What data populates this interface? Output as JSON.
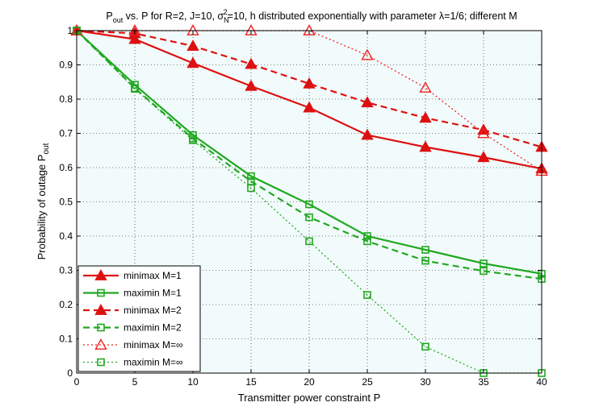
{
  "chart_data": {
    "type": "line",
    "title": {
      "p_main": "P",
      "p_sub": "out",
      "part1": " vs. P for R=2, J=10, σ",
      "sigma_sup": "2",
      "sigma_sub": "N",
      "part2": "=10, h distributed exponentially with parameter λ=1/6; different M"
    },
    "xlabel": "Transmitter power constraint P",
    "ylabel": {
      "main": "Probability of outage P",
      "sub": "out"
    },
    "xlim": [
      0,
      40
    ],
    "ylim": [
      0,
      1
    ],
    "xticks": [
      0,
      5,
      10,
      15,
      20,
      25,
      30,
      35,
      40
    ],
    "xtick_labels": [
      "0",
      "5",
      "10",
      "15",
      "20",
      "25",
      "30",
      "35",
      "40"
    ],
    "yticks": [
      0,
      0.1,
      0.2,
      0.3,
      0.4,
      0.5,
      0.6,
      0.7,
      0.8,
      0.9,
      1
    ],
    "ytick_labels": [
      "0",
      "0.1",
      "0.2",
      "0.3",
      "0.4",
      "0.5",
      "0.6",
      "0.7",
      "0.8",
      "0.9",
      "1"
    ],
    "grid": true,
    "legend_position": "bottom-left",
    "x": [
      0,
      5,
      10,
      15,
      20,
      25,
      30,
      35,
      40
    ],
    "series": [
      {
        "name": "minimax M=1",
        "color": "#dd1111",
        "line": "solid",
        "marker": "filled-triangle",
        "values": [
          1.0,
          0.975,
          0.905,
          0.838,
          0.775,
          0.695,
          0.66,
          0.63,
          0.597
        ]
      },
      {
        "name": "maximin M=1",
        "color": "#22a822",
        "line": "solid",
        "marker": "square",
        "values": [
          1.0,
          0.842,
          0.695,
          0.575,
          0.493,
          0.4,
          0.36,
          0.32,
          0.29
        ]
      },
      {
        "name": "minimax M=2",
        "color": "#dd1111",
        "line": "dashed",
        "marker": "filled-triangle",
        "values": [
          1.0,
          0.992,
          0.955,
          0.902,
          0.845,
          0.79,
          0.745,
          0.71,
          0.66
        ]
      },
      {
        "name": "maximin M=2",
        "color": "#22a822",
        "line": "dashed",
        "marker": "square",
        "values": [
          1.0,
          0.832,
          0.685,
          0.56,
          0.455,
          0.385,
          0.328,
          0.298,
          0.275
        ]
      },
      {
        "name": "minimax M=∞",
        "color": "#ee2222",
        "line": "dotted",
        "marker": "open-triangle",
        "values": [
          1.0,
          1.0,
          1.0,
          1.0,
          1.0,
          0.928,
          0.833,
          0.7,
          0.59
        ]
      },
      {
        "name": "maximin M=∞",
        "color": "#22a822",
        "line": "dotted",
        "marker": "square",
        "values": [
          1.0,
          0.83,
          0.68,
          0.54,
          0.385,
          0.228,
          0.077,
          0.0,
          0.0
        ]
      }
    ],
    "colors": {
      "plot_background": "#f2fbfb",
      "red": "#dd1111",
      "green": "#22a822",
      "legend_background": "#ffffff"
    }
  }
}
